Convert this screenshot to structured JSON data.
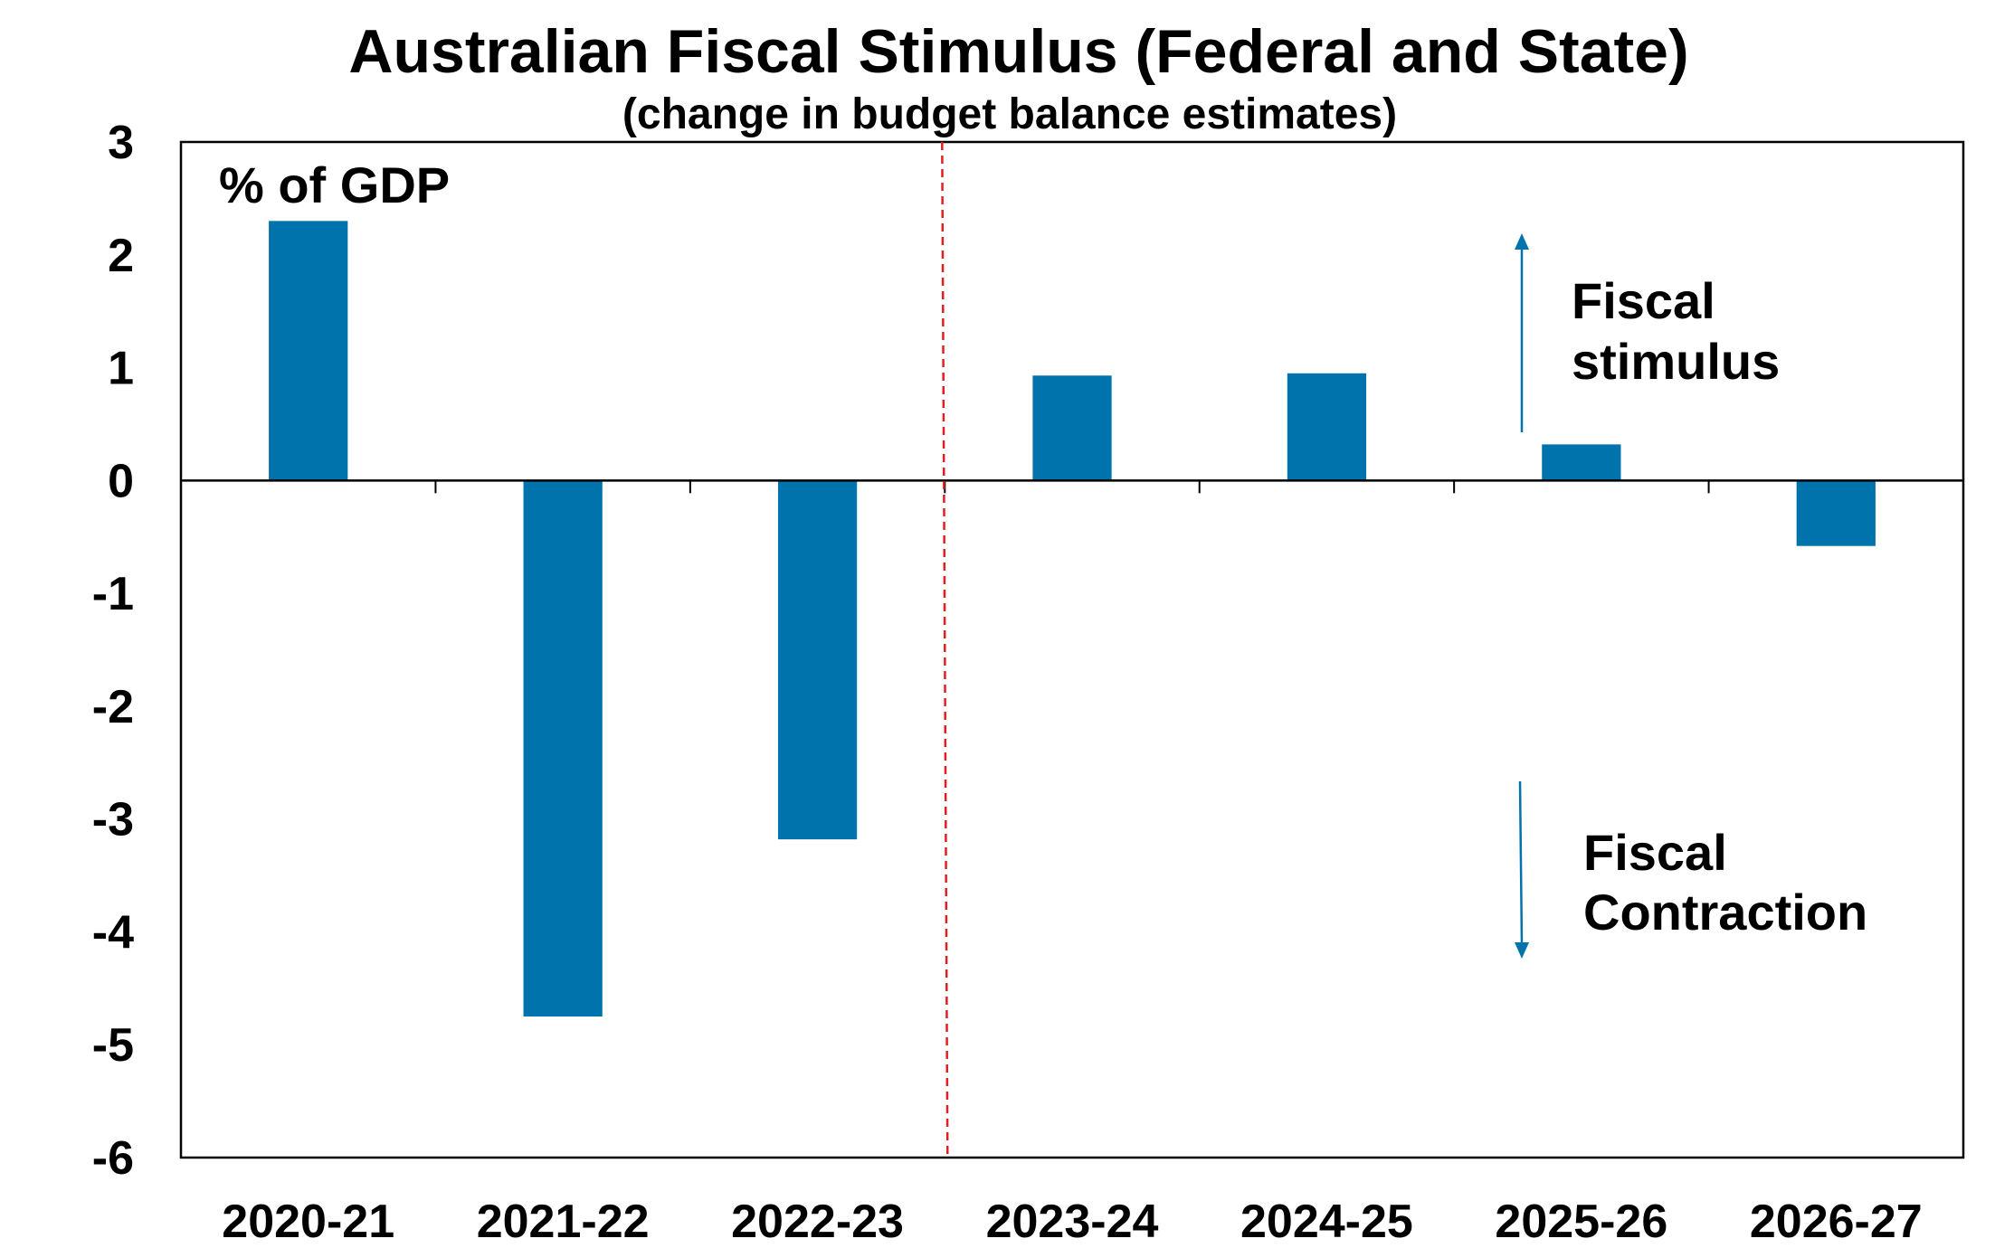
{
  "chart_data": {
    "type": "bar",
    "title": "Australian Fiscal Stimulus (Federal and State)",
    "subtitle": "(change in budget balance estimates)",
    "unit_label": "% of GDP",
    "categories": [
      "2020-21",
      "2021-22",
      "2022-23",
      "2023-24",
      "2024-25",
      "2025-26",
      "2026-27"
    ],
    "values": [
      2.3,
      -4.75,
      -3.18,
      0.93,
      0.95,
      0.32,
      -0.58
    ],
    "ylim": [
      -6,
      3
    ],
    "yticks": [
      3,
      2,
      1,
      0,
      -1,
      -2,
      -3,
      -4,
      -5,
      -6
    ],
    "ytick_labels": [
      "3",
      "2",
      "1",
      "0",
      "-1",
      "-2",
      "-3",
      "-4",
      "-5",
      "-6"
    ],
    "bar_color": "#0072AC",
    "divider_after_category": "2022-23",
    "divider_color": "#E02020",
    "grid": false,
    "annotations": {
      "stimulus_line1": "Fiscal",
      "stimulus_line2": "stimulus",
      "contraction_line1": "Fiscal",
      "contraction_line2": "Contraction",
      "arrow_color": "#0072AC"
    }
  }
}
